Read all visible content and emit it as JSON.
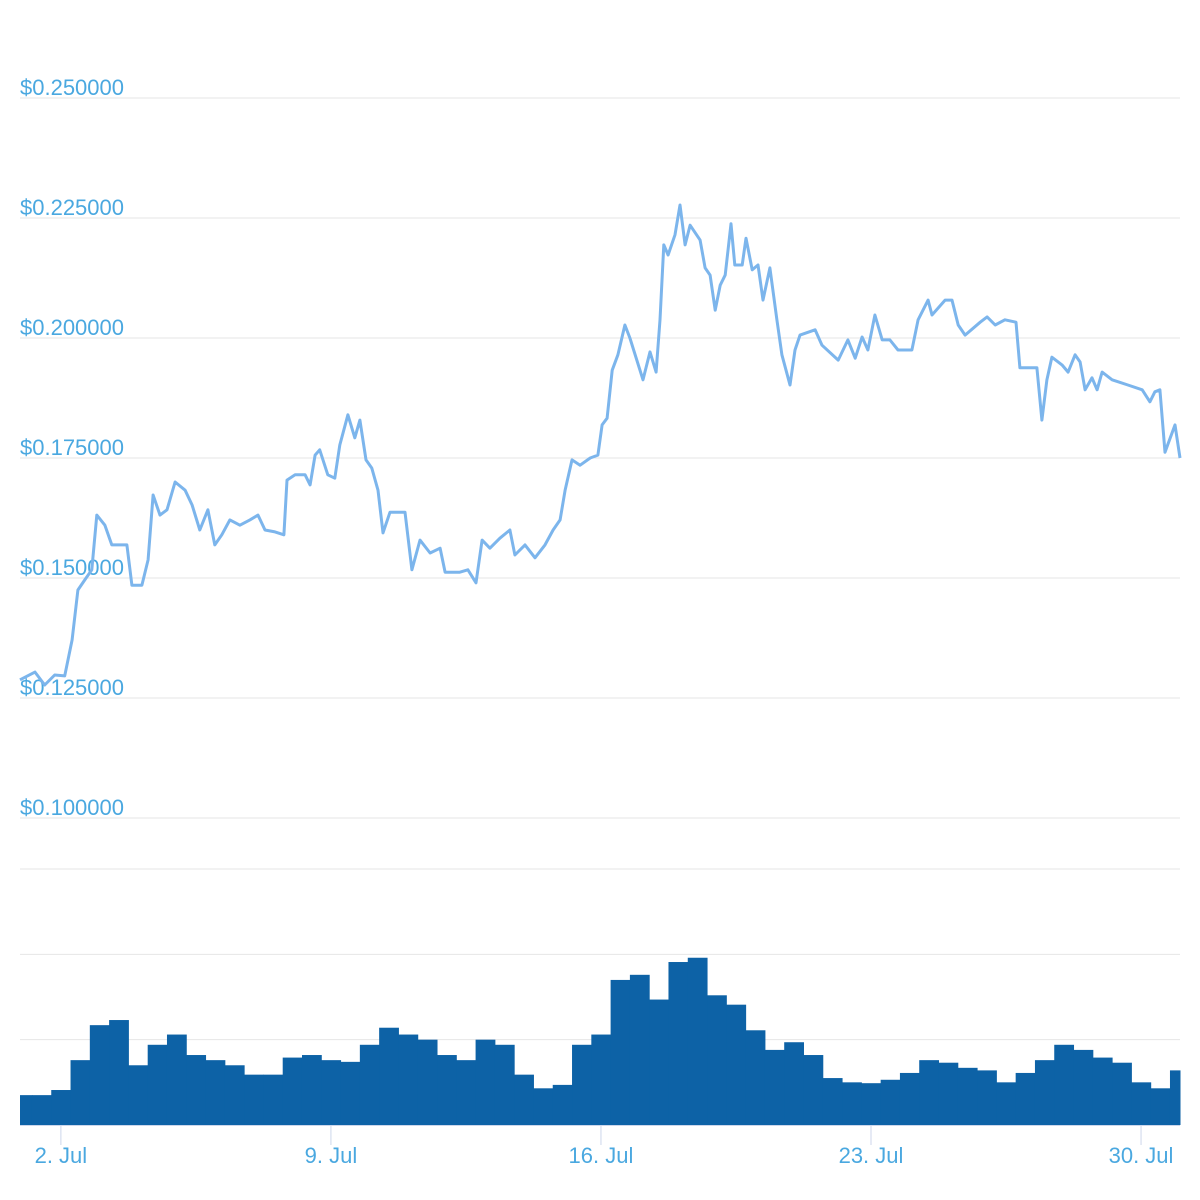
{
  "chart_data": [
    {
      "type": "line",
      "x": [
        0.94,
        1.33,
        1.58,
        1.84,
        2.1,
        2.29,
        2.44,
        2.62,
        2.8,
        2.93,
        3.14,
        3.32,
        3.53,
        3.71,
        3.84,
        4.1,
        4.26,
        4.39,
        4.57,
        4.75,
        4.96,
        5.22,
        5.4,
        5.6,
        5.81,
        5.99,
        6.17,
        6.38,
        6.64,
        6.9,
        7.11,
        7.29,
        7.55,
        7.78,
        7.86,
        8.07,
        8.33,
        8.46,
        8.59,
        8.71,
        8.92,
        9.1,
        9.23,
        9.44,
        9.62,
        9.75,
        9.91,
        10.06,
        10.22,
        10.35,
        10.53,
        10.92,
        11.1,
        11.31,
        11.57,
        11.83,
        11.96,
        12.34,
        12.55,
        12.76,
        12.92,
        13.12,
        13.38,
        13.64,
        13.77,
        14.03,
        14.29,
        14.55,
        14.76,
        14.94,
        15.07,
        15.25,
        15.46,
        15.72,
        15.92,
        16.03,
        16.16,
        16.29,
        16.44,
        16.62,
        16.75,
        16.93,
        17.09,
        17.27,
        17.43,
        17.53,
        17.63,
        17.74,
        17.92,
        18.05,
        18.18,
        18.31,
        18.57,
        18.7,
        18.83,
        18.96,
        19.09,
        19.22,
        19.37,
        19.47,
        19.66,
        19.76,
        19.92,
        20.07,
        20.2,
        20.38,
        20.56,
        20.69,
        20.9,
        21.03,
        21.16,
        21.55,
        21.73,
        22.15,
        22.4,
        22.59,
        22.77,
        22.92,
        23.1,
        23.29,
        23.49,
        23.7,
        24.06,
        24.22,
        24.48,
        24.58,
        24.92,
        25.1,
        25.26,
        25.44,
        25.83,
        26.01,
        26.22,
        26.47,
        26.76,
        26.86,
        27.3,
        27.43,
        27.56,
        27.69,
        27.95,
        28.11,
        28.29,
        28.42,
        28.55,
        28.73,
        28.86,
        28.99,
        29.25,
        29.66,
        30.03,
        30.23,
        30.36,
        30.49,
        30.62,
        30.88,
        31.01
      ],
      "values": [
        0.1288,
        0.1304,
        0.1277,
        0.1298,
        0.1296,
        0.1371,
        0.1475,
        0.1496,
        0.1517,
        0.1631,
        0.161,
        0.1569,
        0.1569,
        0.1569,
        0.1485,
        0.1485,
        0.1538,
        0.1673,
        0.1631,
        0.1642,
        0.17,
        0.1683,
        0.1652,
        0.16,
        0.1642,
        0.1569,
        0.159,
        0.1621,
        0.161,
        0.1621,
        0.1631,
        0.16,
        0.1596,
        0.159,
        0.1704,
        0.1715,
        0.1715,
        0.1694,
        0.1756,
        0.1767,
        0.1715,
        0.1708,
        0.1777,
        0.184,
        0.1792,
        0.1829,
        0.1746,
        0.1729,
        0.1683,
        0.1594,
        0.1637,
        0.1637,
        0.1517,
        0.1579,
        0.1552,
        0.1562,
        0.1512,
        0.1512,
        0.1517,
        0.149,
        0.1579,
        0.1562,
        0.1583,
        0.16,
        0.1548,
        0.1569,
        0.1542,
        0.1569,
        0.16,
        0.1621,
        0.1683,
        0.1746,
        0.1735,
        0.175,
        0.1756,
        0.1819,
        0.1833,
        0.1933,
        0.1965,
        0.2027,
        0.2,
        0.1954,
        0.1913,
        0.1971,
        0.1929,
        0.2038,
        0.2194,
        0.2173,
        0.2215,
        0.2277,
        0.2194,
        0.2235,
        0.2204,
        0.2146,
        0.2131,
        0.2058,
        0.211,
        0.2131,
        0.2238,
        0.2152,
        0.2152,
        0.2208,
        0.2142,
        0.2152,
        0.2079,
        0.2146,
        0.2038,
        0.1965,
        0.1902,
        0.1975,
        0.2006,
        0.2017,
        0.1985,
        0.1954,
        0.1996,
        0.1958,
        0.2002,
        0.1975,
        0.2048,
        0.1996,
        0.1996,
        0.1975,
        0.1975,
        0.2038,
        0.2079,
        0.2048,
        0.2079,
        0.2079,
        0.2027,
        0.2006,
        0.2033,
        0.2044,
        0.2027,
        0.2038,
        0.2033,
        0.1938,
        0.1938,
        0.1829,
        0.1913,
        0.196,
        0.1944,
        0.1929,
        0.1965,
        0.195,
        0.1892,
        0.1917,
        0.1892,
        0.1929,
        0.1913,
        0.1902,
        0.1892,
        0.1867,
        0.1888,
        0.1892,
        0.1762,
        0.1819,
        0.175
      ],
      "color": "#7cb5ec",
      "xlim": [
        0.94,
        31.01
      ],
      "ylim": [
        0.1,
        0.25
      ],
      "yticks": [
        {
          "value": 0.1,
          "label": "$0.100000"
        },
        {
          "value": 0.125,
          "label": "$0.125000"
        },
        {
          "value": 0.15,
          "label": "$0.150000"
        },
        {
          "value": 0.175,
          "label": "$0.175000"
        },
        {
          "value": 0.2,
          "label": "$0.200000"
        },
        {
          "value": 0.225,
          "label": "$0.225000"
        },
        {
          "value": 0.25,
          "label": "$0.250000"
        }
      ],
      "grid": true
    },
    {
      "type": "bar",
      "x": [
        1.0,
        1.5,
        2.0,
        2.5,
        3.0,
        3.5,
        4.0,
        4.5,
        5.0,
        5.5,
        6.0,
        6.5,
        7.0,
        7.5,
        8.0,
        8.5,
        9.0,
        9.5,
        10.0,
        10.5,
        11.0,
        11.5,
        12.0,
        12.5,
        13.0,
        13.5,
        14.0,
        14.5,
        15.0,
        15.5,
        16.0,
        16.5,
        17.0,
        17.5,
        18.0,
        18.5,
        19.0,
        19.5,
        20.0,
        20.5,
        21.0,
        21.5,
        22.0,
        22.5,
        23.0,
        23.5,
        24.0,
        24.5,
        25.0,
        25.5,
        26.0,
        26.5,
        27.0,
        27.5,
        28.0,
        28.5,
        29.0,
        29.5,
        30.0,
        30.5,
        31.0
      ],
      "values": [
        0.35,
        0.35,
        0.41,
        0.76,
        1.17,
        1.23,
        0.7,
        0.94,
        1.06,
        0.82,
        0.76,
        0.7,
        0.59,
        0.59,
        0.79,
        0.82,
        0.76,
        0.74,
        0.94,
        1.14,
        1.06,
        1.0,
        0.82,
        0.76,
        1.0,
        0.94,
        0.59,
        0.43,
        0.47,
        0.94,
        1.06,
        1.7,
        1.76,
        1.47,
        1.91,
        1.96,
        1.52,
        1.41,
        1.11,
        0.88,
        0.97,
        0.82,
        0.55,
        0.5,
        0.49,
        0.53,
        0.61,
        0.76,
        0.73,
        0.67,
        0.64,
        0.5,
        0.61,
        0.76,
        0.94,
        0.88,
        0.79,
        0.73,
        0.5,
        0.43,
        0.64
      ],
      "color": "#0d62a6",
      "xlim": [
        0.94,
        31.01
      ],
      "ylim": [
        0,
        3
      ],
      "yticks": [
        0,
        1,
        2,
        3
      ],
      "xticks": [
        {
          "value": 2,
          "label": "2. Jul"
        },
        {
          "value": 9,
          "label": "9. Jul"
        },
        {
          "value": 16,
          "label": "16. Jul"
        },
        {
          "value": 23,
          "label": "23. Jul"
        },
        {
          "value": 30,
          "label": "30. Jul"
        }
      ],
      "grid": true
    }
  ]
}
